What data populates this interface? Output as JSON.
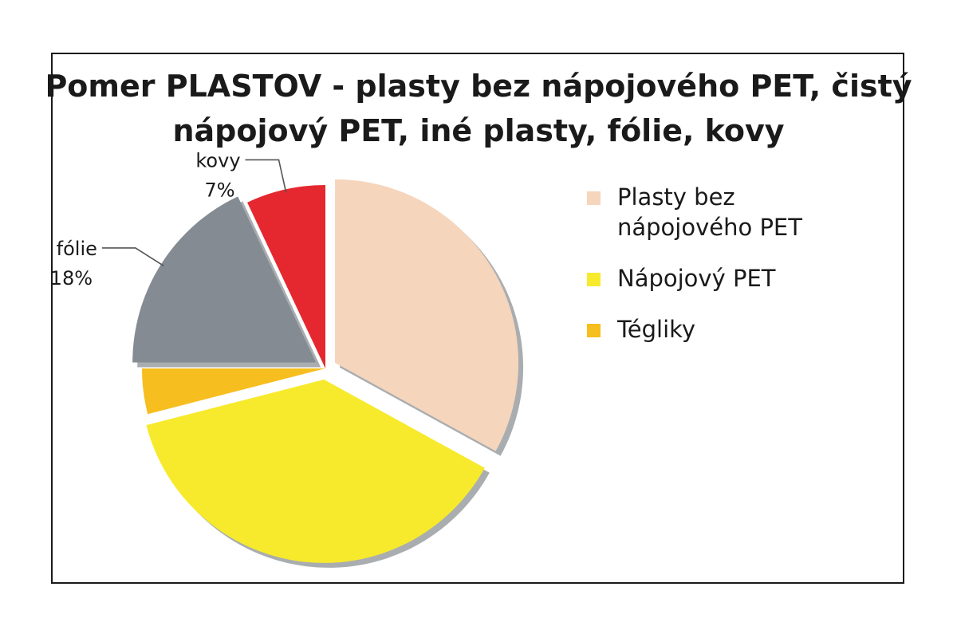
{
  "chart_data": {
    "type": "pie",
    "title": "Pomer PLASTOV - plasty bez nápojového PET, čistý nápojový PET, iné plasty, fólie, kovy",
    "slices": [
      {
        "name": "Plasty bez nápojového PET",
        "value": 33,
        "color": "#F5D5BC",
        "label": "",
        "exploded": true
      },
      {
        "name": "Nápojový PET",
        "value": 38,
        "color": "#F7EA2C",
        "label": "",
        "exploded": true
      },
      {
        "name": "Tégliky",
        "value": 4,
        "color": "#F6BE1E",
        "label": "",
        "exploded": false
      },
      {
        "name": "fólie",
        "value": 18,
        "color": "#848B92",
        "label": "18%",
        "exploded": true
      },
      {
        "name": "kovy",
        "value": 7,
        "color": "#E5282F",
        "label": "7%",
        "exploded": false
      }
    ],
    "legend": [
      {
        "label": "Plasty bez nápojového PET",
        "color": "#F5D5BC"
      },
      {
        "label": "Nápojový PET",
        "color": "#F7EA2C"
      },
      {
        "label": "Tégliky",
        "color": "#F6BE1E"
      }
    ],
    "legend_position": "right"
  }
}
